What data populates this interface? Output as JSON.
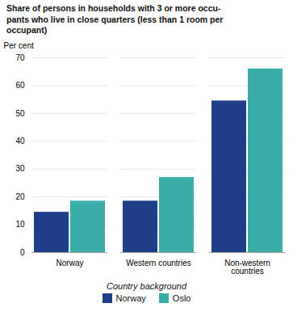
{
  "chart_data": {
    "type": "bar",
    "title": "Share of persons in households with 3 or more occu-\npants who live in close quarters (less than 1 room per\noccupant)",
    "ylabel": "Per cent",
    "categories": [
      "Norway",
      "Western countries",
      "Non-western\ncountries"
    ],
    "series": [
      {
        "name": "Norway",
        "color": "#1e3f87",
        "values": [
          14.5,
          18.5,
          54.5
        ]
      },
      {
        "name": "Oslo",
        "color": "#3aada8",
        "values": [
          18.5,
          27.0,
          66.0
        ]
      }
    ],
    "ylim": [
      0,
      70
    ],
    "yticks": [
      0,
      10,
      20,
      30,
      40,
      50,
      60,
      70
    ],
    "grid": true,
    "legend": "bottom",
    "legend_title": "Country background"
  }
}
